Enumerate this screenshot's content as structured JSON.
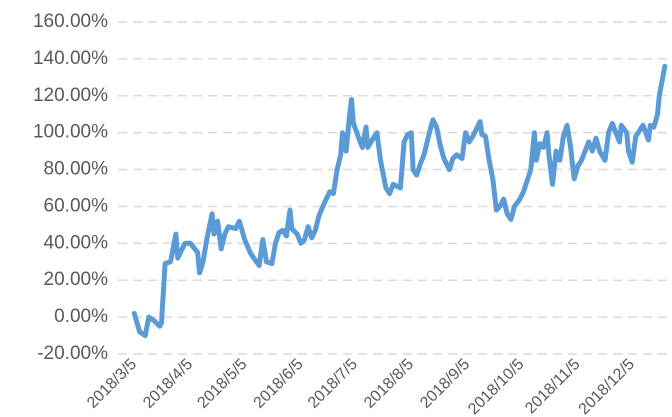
{
  "chart_data": {
    "type": "line",
    "x": [
      "2018/3/5",
      "2018/3/8",
      "2018/3/11",
      "2018/3/13",
      "2018/3/16",
      "2018/3/19",
      "2018/3/20",
      "2018/3/22",
      "2018/3/25",
      "2018/3/28",
      "2018/3/29",
      "2018/4/2",
      "2018/4/5",
      "2018/4/9",
      "2018/4/10",
      "2018/4/12",
      "2018/4/14",
      "2018/4/17",
      "2018/4/18",
      "2018/4/20",
      "2018/4/22",
      "2018/4/24",
      "2018/4/26",
      "2018/4/30",
      "2018/5/2",
      "2018/5/5",
      "2018/5/8",
      "2018/5/10",
      "2018/5/13",
      "2018/5/15",
      "2018/5/17",
      "2018/5/20",
      "2018/5/22",
      "2018/5/24",
      "2018/5/26",
      "2018/5/28",
      "2018/5/30",
      "2018/5/31",
      "2018/6/3",
      "2018/6/5",
      "2018/6/7",
      "2018/6/9",
      "2018/6/11",
      "2018/6/13",
      "2018/6/15",
      "2018/6/18",
      "2018/6/21",
      "2018/6/23",
      "2018/6/25",
      "2018/6/27",
      "2018/6/28",
      "2018/6/30",
      "2018/7/2",
      "2018/7/3",
      "2018/7/4",
      "2018/7/7",
      "2018/7/9",
      "2018/7/11",
      "2018/7/12",
      "2018/7/15",
      "2018/7/17",
      "2018/7/19",
      "2018/7/22",
      "2018/7/24",
      "2018/7/26",
      "2018/7/28",
      "2018/7/30",
      "2018/8/1",
      "2018/8/3",
      "2018/8/5",
      "2018/8/6",
      "2018/8/8",
      "2018/8/10",
      "2018/8/12",
      "2018/8/15",
      "2018/8/17",
      "2018/8/19",
      "2018/8/21",
      "2018/8/23",
      "2018/8/26",
      "2018/8/28",
      "2018/8/30",
      "2018/9/2",
      "2018/9/4",
      "2018/9/6",
      "2018/9/8",
      "2018/9/12",
      "2018/9/13",
      "2018/9/15",
      "2018/9/17",
      "2018/9/19",
      "2018/9/21",
      "2018/9/23",
      "2018/9/25",
      "2018/9/27",
      "2018/9/29",
      "2018/10/1",
      "2018/10/4",
      "2018/10/6",
      "2018/10/8",
      "2018/10/10",
      "2018/10/12",
      "2018/10/13",
      "2018/10/15",
      "2018/10/17",
      "2018/10/19",
      "2018/10/20",
      "2018/10/22",
      "2018/10/24",
      "2018/10/26",
      "2018/10/28",
      "2018/10/30",
      "2018/11/1",
      "2018/11/3",
      "2018/11/5",
      "2018/11/7",
      "2018/11/9",
      "2018/11/11",
      "2018/11/13",
      "2018/11/15",
      "2018/11/17",
      "2018/11/20",
      "2018/11/22",
      "2018/11/24",
      "2018/11/26",
      "2018/11/28",
      "2018/11/29",
      "2018/12/2",
      "2018/12/3",
      "2018/12/5",
      "2018/12/7",
      "2018/12/9",
      "2018/12/11",
      "2018/12/14",
      "2018/12/15",
      "2018/12/17",
      "2018/12/19",
      "2018/12/20",
      "2018/12/23"
    ],
    "series": [
      {
        "color": "#5b9bd5",
        "values": [
          2,
          -8,
          -10,
          0,
          -2,
          -5,
          -3,
          29,
          30,
          45,
          32,
          40,
          40,
          35,
          24,
          30,
          42,
          56,
          45,
          52,
          37,
          45,
          49,
          48,
          52,
          42,
          35,
          32,
          28,
          42,
          30,
          29,
          40,
          46,
          47,
          44,
          58,
          48,
          45,
          40,
          42,
          49,
          43,
          47,
          55,
          62,
          68,
          67,
          80,
          88,
          100,
          90,
          110,
          118,
          105,
          97,
          92,
          103,
          92,
          97,
          100,
          85,
          70,
          67,
          72,
          71,
          70,
          95,
          99,
          100,
          80,
          77,
          83,
          88,
          100,
          107,
          103,
          93,
          86,
          80,
          86,
          88,
          86,
          100,
          95,
          98,
          106,
          99,
          98,
          85,
          75,
          58,
          60,
          64,
          56,
          53,
          60,
          64,
          68,
          74,
          80,
          100,
          85,
          94,
          92,
          100,
          88,
          72,
          90,
          85,
          98,
          104,
          92,
          75,
          82,
          85,
          90,
          95,
          90,
          97,
          90,
          85,
          100,
          105,
          100,
          95,
          104,
          100,
          90,
          84,
          98,
          101,
          104,
          96,
          104,
          103,
          110,
          120,
          136
        ]
      }
    ],
    "xlim": [
      "2018/2/24",
      "2018/12/27"
    ],
    "xticks": [
      "2018/3/5",
      "2018/4/5",
      "2018/5/5",
      "2018/6/5",
      "2018/7/5",
      "2018/8/5",
      "2018/9/5",
      "2018/10/5",
      "2018/11/5",
      "2018/12/5"
    ],
    "ylim": [
      -20,
      160
    ],
    "yticks": [
      {
        "value": -20,
        "label": "-20.00%"
      },
      {
        "value": 0,
        "label": "0.00%"
      },
      {
        "value": 20,
        "label": "20.00%"
      },
      {
        "value": 40,
        "label": "40.00%"
      },
      {
        "value": 60,
        "label": "60.00%"
      },
      {
        "value": 80,
        "label": "80.00%"
      },
      {
        "value": 100,
        "label": "100.00%"
      },
      {
        "value": 120,
        "label": "120.00%"
      },
      {
        "value": 140,
        "label": "140.00%"
      },
      {
        "value": 160,
        "label": "160.00%"
      }
    ],
    "grid": true
  }
}
